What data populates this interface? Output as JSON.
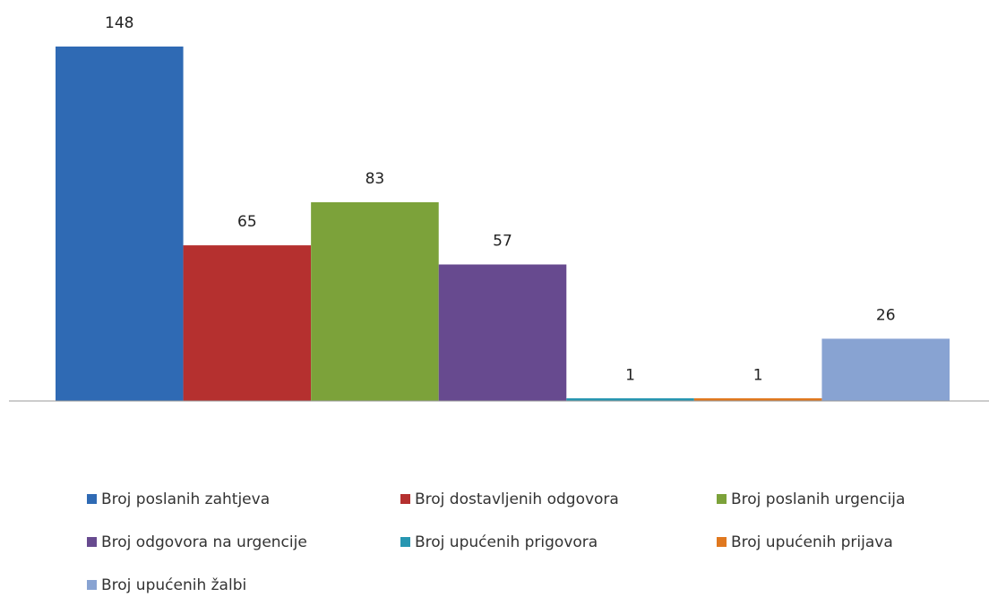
{
  "chart_data": {
    "type": "bar",
    "series": [
      {
        "name": "Broj poslanih zahtjeva",
        "color": "#2f6ab4",
        "values": [
          148
        ]
      },
      {
        "name": "Broj dostavljenih odgovora",
        "color": "#b5302f",
        "values": [
          65
        ]
      },
      {
        "name": "Broj poslanih urgencija",
        "color": "#7ca23a",
        "values": [
          83
        ]
      },
      {
        "name": "Broj odgovora na urgencije",
        "color": "#674a8f",
        "values": [
          57
        ]
      },
      {
        "name": "Broj upućenih prigovora",
        "color": "#2796b1",
        "values": [
          1
        ]
      },
      {
        "name": "Broj upućenih prijava",
        "color": "#e0781f",
        "values": [
          1
        ]
      },
      {
        "name": "Broj upućenih žalbi",
        "color": "#88a3d2",
        "values": [
          26
        ]
      }
    ]
  }
}
